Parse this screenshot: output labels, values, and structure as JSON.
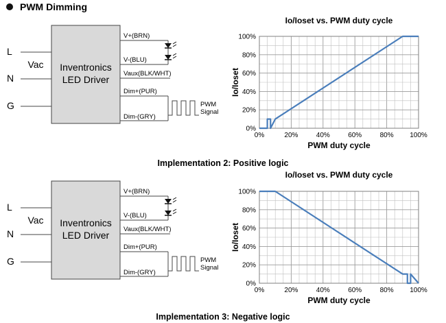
{
  "header": {
    "title": "PWM Dimming"
  },
  "driver": {
    "vac_label": "Vac",
    "name_line1": "Inventronics",
    "name_line2": "LED Driver",
    "inputs": [
      "L",
      "N",
      "G"
    ],
    "outputs": [
      "V+(BRN)",
      "V-(BLU)",
      "Vaux(BLK/WHT)",
      "Dim+(PUR)",
      "Dim-(GRY)"
    ],
    "pwm_label_line1": "PWM",
    "pwm_label_line2": "Signal"
  },
  "chart_data": [
    {
      "type": "line",
      "title": "Io/Ioset vs. PWM duty cycle",
      "xlabel": "PWM duty cycle",
      "ylabel": "Io/Ioset",
      "xlim": [
        0,
        100
      ],
      "ylim": [
        0,
        100
      ],
      "xticks": [
        "0%",
        "20%",
        "40%",
        "60%",
        "80%",
        "100%"
      ],
      "yticks": [
        "0%",
        "20%",
        "40%",
        "60%",
        "80%",
        "100%"
      ],
      "x": [
        0,
        5,
        5,
        7,
        7,
        10,
        90,
        100
      ],
      "y": [
        0,
        0,
        10,
        10,
        0,
        10,
        100,
        100
      ],
      "grid": true,
      "caption": "Implementation 2: Positive logic"
    },
    {
      "type": "line",
      "title": "Io/Ioset vs. PWM duty cycle",
      "xlabel": "PWM duty cycle",
      "ylabel": "Io/Ioset",
      "xlim": [
        0,
        100
      ],
      "ylim": [
        0,
        100
      ],
      "xticks": [
        "0%",
        "20%",
        "40%",
        "60%",
        "80%",
        "100%"
      ],
      "yticks": [
        "0%",
        "20%",
        "40%",
        "60%",
        "80%",
        "100%"
      ],
      "x": [
        0,
        10,
        90,
        93,
        93,
        95,
        95,
        100
      ],
      "y": [
        100,
        100,
        10,
        10,
        0,
        0,
        10,
        0
      ],
      "grid": true,
      "caption": "Implementation 3: Negative logic"
    }
  ],
  "colors": {
    "line": "#4a7ebb",
    "grid": "#bfbfbf",
    "box": "#d9d9d9"
  }
}
